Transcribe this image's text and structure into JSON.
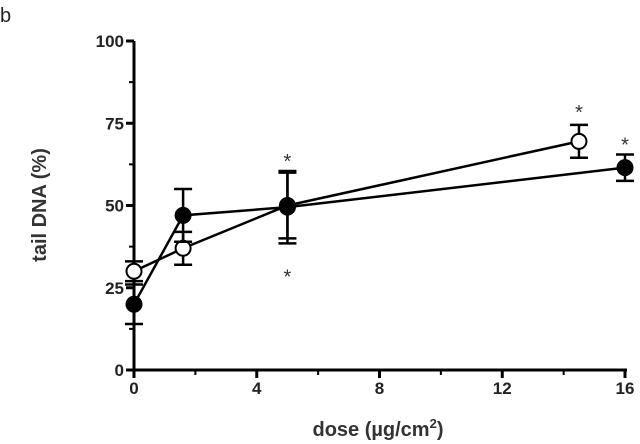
{
  "panel_label": "b",
  "chart_data": {
    "type": "scatter",
    "title": "",
    "xlabel": "dose (µg/cm",
    "xlabel_superscript": "2",
    "xlabel_suffix": ")",
    "ylabel": "tail DNA (%)",
    "xlim": [
      0,
      16
    ],
    "ylim": [
      0,
      100
    ],
    "xticks": [
      0,
      4,
      8,
      12,
      16
    ],
    "yticks": [
      0,
      25,
      50,
      75,
      100
    ],
    "grid": false,
    "legend": "none",
    "series": [
      {
        "marker": "open-circle",
        "color": "#000000",
        "x": [
          0,
          1.6,
          5,
          14.5
        ],
        "y": [
          30,
          37,
          50,
          69.5
        ],
        "err": [
          3,
          5,
          10,
          5
        ]
      },
      {
        "marker": "filled-circle",
        "color": "#000000",
        "x": [
          0,
          1.6,
          5,
          16
        ],
        "y": [
          20,
          47,
          49.5,
          61.5
        ],
        "err": [
          6,
          8,
          11,
          4
        ]
      }
    ],
    "annotations": [
      {
        "text": "*",
        "x": 5,
        "y": 65
      },
      {
        "text": "*",
        "x": 5,
        "y": 30
      },
      {
        "text": "*",
        "x": 14.5,
        "y": 80
      },
      {
        "text": "*",
        "x": 16,
        "y": 70
      }
    ]
  }
}
